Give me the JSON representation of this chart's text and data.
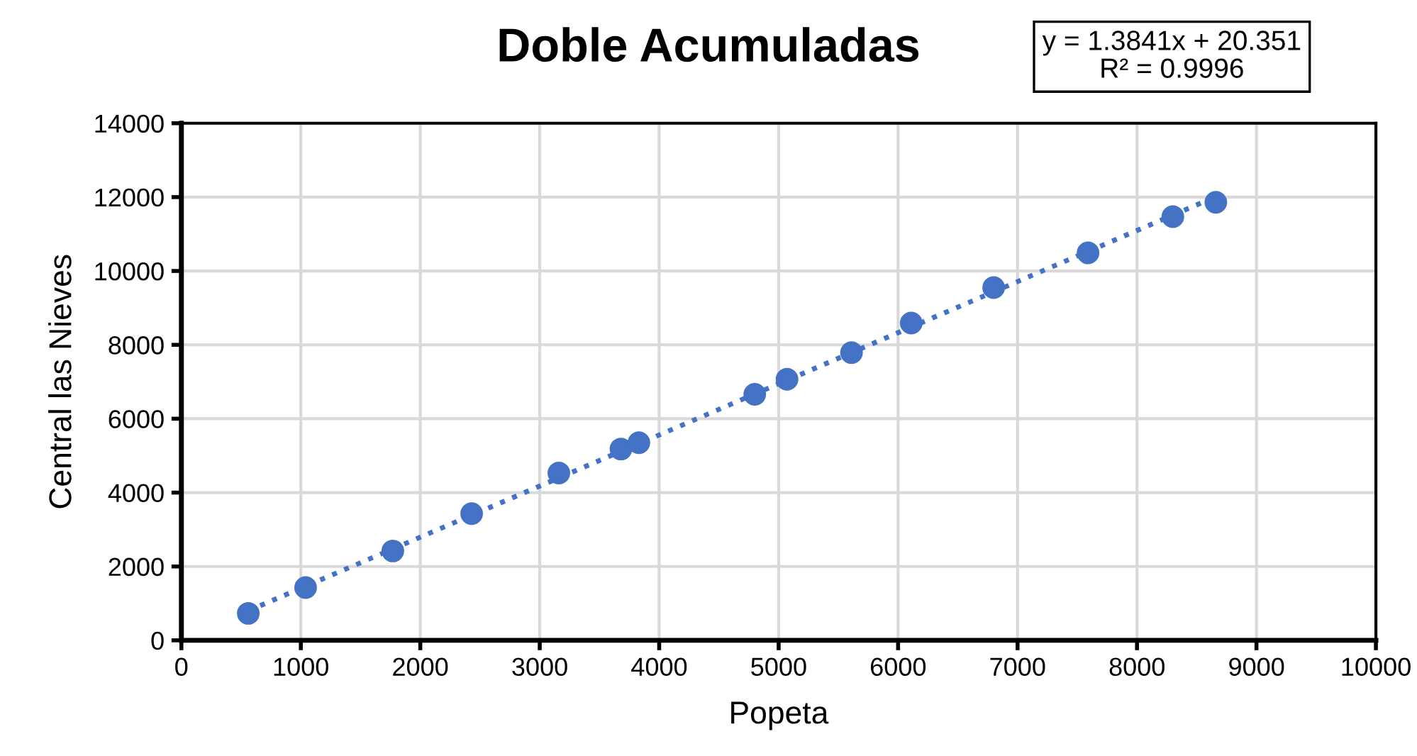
{
  "chart_data": {
    "type": "scatter",
    "title": "Doble Acumuladas",
    "xlabel": "Popeta",
    "ylabel": "Central las Nieves",
    "annotations": [
      "y = 1.3841x + 20.351\nR² = 0.9996"
    ],
    "series": [
      {
        "color": "#4472c4",
        "marker": "circle",
        "x": [
          560,
          1040,
          1770,
          2430,
          3160,
          3680,
          3830,
          4800,
          5070,
          5610,
          6110,
          6800,
          7590,
          8300,
          8660
        ],
        "values": [
          730,
          1430,
          2420,
          3430,
          4530,
          5180,
          5350,
          6660,
          7070,
          7790,
          8590,
          9550,
          10490,
          11470,
          11860
        ]
      },
      {
        "type": "line",
        "color": "#4472c4",
        "line_style": "dotted",
        "marker": "none",
        "x": [
          560,
          8660
        ],
        "values": [
          800,
          12010
        ]
      }
    ],
    "xlim": [
      0,
      10000
    ],
    "xticks": [
      0,
      1000,
      2000,
      3000,
      4000,
      5000,
      6000,
      7000,
      8000,
      9000,
      10000
    ],
    "ylim": [
      0,
      14000
    ],
    "yticks": [
      0,
      2000,
      4000,
      6000,
      8000,
      10000,
      12000,
      14000
    ],
    "grid": true,
    "legend": false
  }
}
